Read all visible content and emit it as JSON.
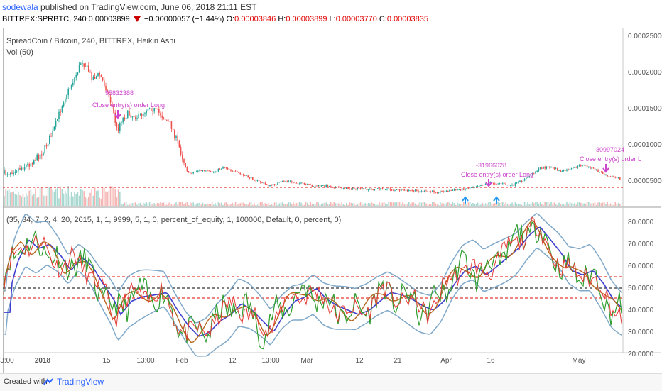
{
  "header": {
    "user": "sodewala",
    "published": " published on TradingView.com, June 06, 2018 21:11 EST"
  },
  "ohlc": {
    "symbol": "BITTREX:SPRBTC, 240 ",
    "price": "0.00003899",
    "change": "−0.00000057 (−1.44%)",
    "o_label": "O:",
    "o": "0.00003846",
    "h_label": "H:",
    "h": "0.00003899",
    "l_label": "L:",
    "l": "0.00003770",
    "c_label": "C:",
    "c": "0.00003835"
  },
  "main_pane": {
    "title": "SpreadCoin / Bitcoin, 240, BITTREX, Heikin Ashi",
    "volume_label": "Vol (50)",
    "y_ticks": [
      "0.00025000",
      "0.00020000",
      "0.00015000",
      "0.00010000",
      "0.00005000"
    ],
    "annotations": {
      "a1_value": "95832388",
      "a1_text": "Close entry(s) order Long",
      "a2_value": "-31966028",
      "a2_text": "Close entry(s) order Long",
      "a3_value": "-30997024",
      "a3_text": "Close entry(s) order L"
    }
  },
  "indicator_pane": {
    "params": "(35, 34, 7, 2, 4, 20, 2015, 1, 1, 9999, 5, 1, 0, percent_of_equity, 1, 100000, Default, 0, percent, 0)",
    "y_ticks": [
      "80.0000",
      "70.0000",
      "60.0000",
      "50.0000",
      "40.0000",
      "30.0000",
      "20.0000"
    ]
  },
  "x_axis": {
    "labels": [
      "3:00",
      "2018",
      "15",
      "13:00",
      "Feb",
      "12",
      "13:00",
      "Mar",
      "12",
      "21",
      "Apr",
      "16",
      "May"
    ]
  },
  "footer": {
    "created_with": "Created with",
    "brand": "TradingView"
  },
  "colors": {
    "up": "#26a69a",
    "down": "#ef5350",
    "band": "#7fa8c9",
    "ma": "#3f3fcf",
    "fast": "#2e9e2e",
    "slow": "#b5651d",
    "signal": "#cc44cc",
    "hline": "#e53935"
  }
}
